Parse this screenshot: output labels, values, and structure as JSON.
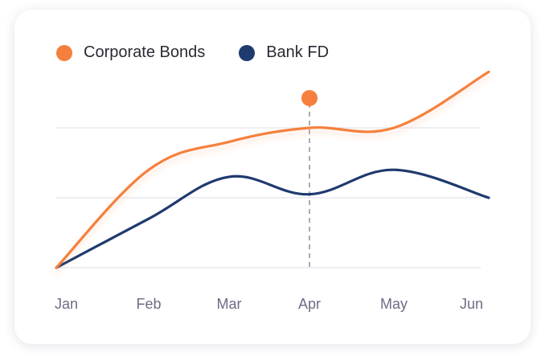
{
  "chart_data": {
    "type": "line",
    "categories": [
      "Jan",
      "Feb",
      "Mar",
      "Apr",
      "May",
      "Jun"
    ],
    "series": [
      {
        "name": "Corporate Bonds",
        "color": "#F5803E",
        "values": [
          0,
          1.4,
          1.8,
          2.0,
          2.0,
          2.8
        ]
      },
      {
        "name": "Bank FD",
        "color": "#1F3A6E",
        "values": [
          0,
          0.7,
          1.3,
          1.05,
          1.4,
          1.0
        ]
      }
    ],
    "highlight_category": "Apr",
    "highlight_series": "Corporate Bonds",
    "gridlines": [
      1,
      2
    ],
    "ylim": [
      0,
      3
    ],
    "grid": true,
    "legend_position": "top-left",
    "title": "",
    "xlabel": "",
    "ylabel": ""
  }
}
